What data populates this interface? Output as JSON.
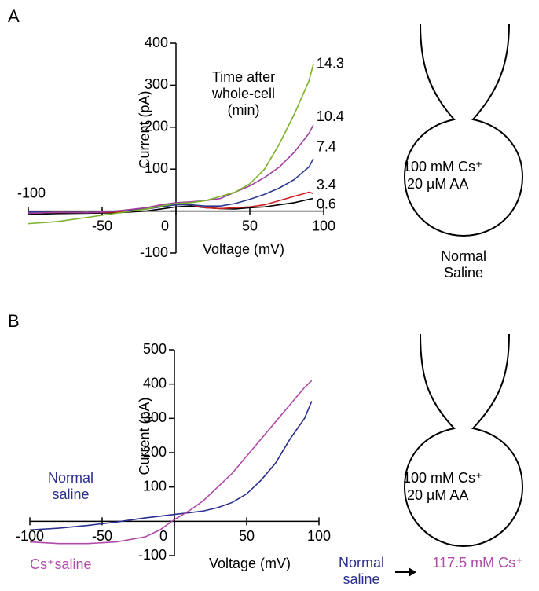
{
  "chart_data": [
    {
      "type": "line",
      "panel_label": "A",
      "xlabel": "Voltage (mV)",
      "ylabel": "Current (pA)",
      "annotation": "Time after whole-cell (min)",
      "x": [
        -100,
        -80,
        -60,
        -40,
        -20,
        -10,
        0,
        10,
        20,
        30,
        40,
        50,
        60,
        70,
        80,
        90,
        93
      ],
      "series": [
        {
          "name": "0.6",
          "color": "#000000",
          "values": [
            -8,
            -6,
            -5,
            -4,
            0,
            5,
            10,
            12,
            8,
            6,
            5,
            8,
            10,
            15,
            20,
            28,
            30
          ]
        },
        {
          "name": "3.4",
          "color": "#d0201e",
          "values": [
            -5,
            -3,
            -4,
            -2,
            5,
            12,
            18,
            15,
            8,
            6,
            8,
            10,
            15,
            25,
            35,
            45,
            42
          ]
        },
        {
          "name": "7.4",
          "color": "#2b3990",
          "values": [
            -2,
            -3,
            -4,
            0,
            5,
            10,
            15,
            15,
            12,
            12,
            18,
            28,
            40,
            55,
            75,
            105,
            125
          ]
        },
        {
          "name": "10.4",
          "color": "#9e3d9e",
          "values": [
            -5,
            -3,
            -4,
            0,
            8,
            15,
            20,
            22,
            25,
            30,
            45,
            60,
            80,
            105,
            140,
            185,
            205
          ]
        },
        {
          "name": "14.3",
          "color": "#7cb32c",
          "values": [
            -30,
            -25,
            -15,
            -5,
            5,
            12,
            18,
            20,
            25,
            35,
            45,
            65,
            100,
            160,
            230,
            310,
            350
          ]
        }
      ],
      "xlim": [
        -100,
        100
      ],
      "ylim": [
        -100,
        400
      ],
      "xticks": [
        -100,
        -50,
        0,
        50,
        100
      ],
      "yticks": [
        -100,
        0,
        100,
        200,
        300,
        400
      ]
    },
    {
      "type": "line",
      "panel_label": "B",
      "xlabel": "Voltage (mV)",
      "ylabel": "Current (pA)",
      "x": [
        -100,
        -80,
        -60,
        -40,
        -20,
        -10,
        0,
        10,
        20,
        30,
        40,
        50,
        60,
        70,
        80,
        90,
        95
      ],
      "series": [
        {
          "name": "Normal saline",
          "color": "#2b2f8f",
          "values": [
            -25,
            -20,
            -12,
            -2,
            10,
            15,
            20,
            25,
            30,
            40,
            55,
            80,
            120,
            170,
            240,
            300,
            350
          ]
        },
        {
          "name": "Cs⁺saline",
          "color": "#b04aa8",
          "values": [
            -60,
            -65,
            -65,
            -60,
            -45,
            -25,
            5,
            30,
            60,
            100,
            140,
            190,
            240,
            290,
            340,
            390,
            410
          ]
        }
      ],
      "xlim": [
        -100,
        100
      ],
      "ylim": [
        -100,
        500
      ],
      "xticks": [
        -100,
        -50,
        0,
        50,
        100
      ],
      "yticks": [
        -100,
        0,
        100,
        200,
        300,
        400,
        500
      ]
    }
  ],
  "diagrams": [
    {
      "lines": [
        "100 mM Cs⁺",
        "20 µM AA"
      ],
      "caption": "Normal Saline"
    },
    {
      "lines": [
        "100 mM Cs⁺",
        "20 µM AA"
      ],
      "from": "Normal saline",
      "to": "117.5 mM Cs⁺"
    }
  ]
}
